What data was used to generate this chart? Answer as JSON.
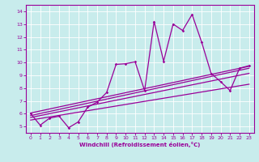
{
  "xlabel": "Windchill (Refroidissement éolien,°C)",
  "bg_color": "#c8ecec",
  "line_color": "#990099",
  "grid_color": "#ffffff",
  "xlim": [
    -0.5,
    23.5
  ],
  "ylim": [
    4.5,
    14.5
  ],
  "xticks": [
    0,
    1,
    2,
    3,
    4,
    5,
    6,
    7,
    8,
    9,
    10,
    11,
    12,
    13,
    14,
    15,
    16,
    17,
    18,
    19,
    20,
    21,
    22,
    23
  ],
  "yticks": [
    5,
    6,
    7,
    8,
    9,
    10,
    11,
    12,
    13,
    14
  ],
  "scatter_x": [
    0,
    1,
    2,
    3,
    4,
    5,
    6,
    7,
    8,
    9,
    10,
    11,
    12,
    13,
    14,
    15,
    16,
    17,
    18,
    19,
    20,
    21,
    22,
    23
  ],
  "scatter_y": [
    6.0,
    5.1,
    5.65,
    5.8,
    4.9,
    5.35,
    6.5,
    6.9,
    7.65,
    9.85,
    9.9,
    10.05,
    7.8,
    13.2,
    10.1,
    13.0,
    12.5,
    13.75,
    11.6,
    9.15,
    8.5,
    7.8,
    9.55,
    9.75
  ],
  "reg_lines": [
    {
      "x0": 0,
      "y0": 6.05,
      "x1": 23,
      "y1": 9.7
    },
    {
      "x0": 0,
      "y0": 5.85,
      "x1": 23,
      "y1": 9.55
    },
    {
      "x0": 0,
      "y0": 5.7,
      "x1": 23,
      "y1": 9.15
    },
    {
      "x0": 0,
      "y0": 5.5,
      "x1": 23,
      "y1": 8.3
    }
  ]
}
